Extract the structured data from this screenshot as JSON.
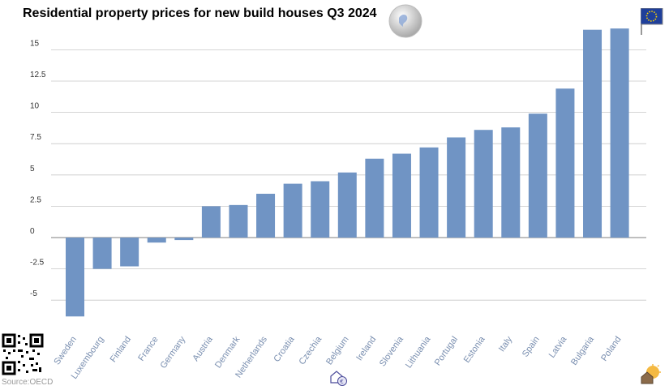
{
  "title": "Residential property prices for new build houses Q3 2024",
  "source": "Source:OECD",
  "colors": {
    "bar": "#7094c4",
    "grid": "#c8c8c8",
    "axis": "#999999"
  },
  "icons": [
    "globe-icon",
    "eu-flag-icon",
    "qr-code-icon",
    "house-euro-icon",
    "house-sun-icon"
  ],
  "chart_data": {
    "type": "bar",
    "title": "Residential property prices for new build houses Q3 2024",
    "categories": [
      "Sweden",
      "Luxembourg",
      "Finland",
      "France",
      "Germany",
      "Austria",
      "Denmark",
      "Netherlands",
      "Croatia",
      "Czechia",
      "Belgium",
      "Ireland",
      "Slovenia",
      "Lithuania",
      "Portugal",
      "Estonia",
      "Italy",
      "Spain",
      "Latvia",
      "Bulgaria",
      "Poland"
    ],
    "values": [
      -6.3,
      -2.5,
      -2.3,
      -0.4,
      -0.2,
      2.5,
      2.6,
      3.5,
      4.3,
      4.5,
      5.2,
      6.3,
      6.7,
      7.2,
      8.0,
      8.6,
      8.8,
      9.9,
      11.9,
      16.6,
      16.7
    ],
    "yticks": [
      -5,
      -2.5,
      0,
      2.5,
      5,
      7.5,
      10,
      12.5,
      15
    ],
    "ytick_labels": [
      "-5",
      "-2.5",
      "0",
      "2.5",
      "5",
      "7.5",
      "10",
      "12.5",
      "15"
    ],
    "ylim": [
      -7.5,
      17.5
    ],
    "grid": true,
    "legend": "none"
  }
}
